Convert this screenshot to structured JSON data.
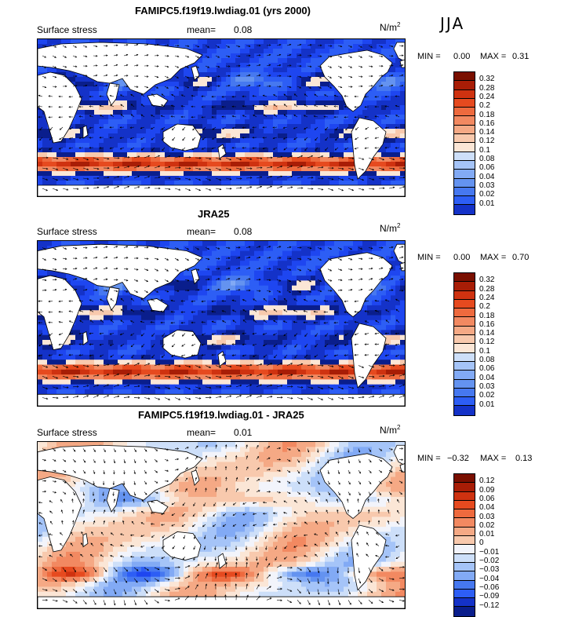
{
  "season": "JJA",
  "colors": {
    "blues": [
      "#0a1e8c",
      "#1432c8",
      "#1e46f0",
      "#2d5ef5",
      "#4678f0",
      "#6493f0",
      "#82aaf5",
      "#a5c4f8",
      "#cddff9",
      "#f2f4fb"
    ],
    "reds": [
      "#fbe6d6",
      "#f8c9ad",
      "#f5a985",
      "#f28961",
      "#ee6a3e",
      "#e64a1f",
      "#cf3210",
      "#a81d06",
      "#7a0f00"
    ],
    "land": "#ffffff",
    "arrow": "#000000"
  },
  "panels": [
    {
      "title": "FAMIPC5.f19f19.lwdiag.01 (yrs 2000)",
      "left_label": "Surface stress",
      "mean_label": "mean=",
      "mean_value": "0.08",
      "unit": "N/m",
      "unit_exp": "2",
      "min_label": "MIN =",
      "min_value": "0.00",
      "max_label": "MAX =",
      "max_value": "0.31",
      "colorbar_levels": [
        "0.32",
        "0.28",
        "0.24",
        "0.2",
        "0.18",
        "0.16",
        "0.14",
        "0.12",
        "0.1",
        "0.08",
        "0.06",
        "0.04",
        "0.03",
        "0.02",
        "0.01"
      ],
      "colorbar_colors": [
        "#7a0f00",
        "#a81d06",
        "#cf3210",
        "#e64a1f",
        "#ee6a3e",
        "#f28961",
        "#f5a985",
        "#f8c9ad",
        "#fbe6d6",
        "#cddff9",
        "#a5c4f8",
        "#82aaf5",
        "#6493f0",
        "#4678f0",
        "#2d5ef5",
        "#1432c8"
      ],
      "palette": "abs"
    },
    {
      "title": "JRA25",
      "left_label": "Surface stress",
      "mean_label": "mean=",
      "mean_value": "0.08",
      "unit": "N/m",
      "unit_exp": "2",
      "min_label": "MIN =",
      "min_value": "0.00",
      "max_label": "MAX =",
      "max_value": "0.70",
      "colorbar_levels": [
        "0.32",
        "0.28",
        "0.24",
        "0.2",
        "0.18",
        "0.16",
        "0.14",
        "0.12",
        "0.1",
        "0.08",
        "0.06",
        "0.04",
        "0.03",
        "0.02",
        "0.01"
      ],
      "colorbar_colors": [
        "#7a0f00",
        "#a81d06",
        "#cf3210",
        "#e64a1f",
        "#ee6a3e",
        "#f28961",
        "#f5a985",
        "#f8c9ad",
        "#fbe6d6",
        "#cddff9",
        "#a5c4f8",
        "#82aaf5",
        "#6493f0",
        "#4678f0",
        "#2d5ef5",
        "#1432c8"
      ],
      "palette": "abs"
    },
    {
      "title": "FAMIPC5.f19f19.lwdiag.01 - JRA25",
      "left_label": "Surface stress",
      "mean_label": "mean=",
      "mean_value": "0.01",
      "unit": "N/m",
      "unit_exp": "2",
      "min_label": "MIN =",
      "min_value": "−0.32",
      "max_label": "MAX =",
      "max_value": "0.13",
      "colorbar_levels": [
        "0.12",
        "0.09",
        "0.06",
        "0.04",
        "0.03",
        "0.02",
        "0.01",
        "0",
        "−0.01",
        "−0.02",
        "−0.03",
        "−0.04",
        "−0.06",
        "−0.09",
        "−0.12"
      ],
      "colorbar_colors": [
        "#7a0f00",
        "#a81d06",
        "#cf3210",
        "#e64a1f",
        "#ee6a3e",
        "#f28961",
        "#f5a985",
        "#f8c9ad",
        "#f2f4fb",
        "#cddff9",
        "#a5c4f8",
        "#82aaf5",
        "#4678f0",
        "#2d5ef5",
        "#1432c8",
        "#0a1e8c"
      ],
      "palette": "diff"
    }
  ]
}
